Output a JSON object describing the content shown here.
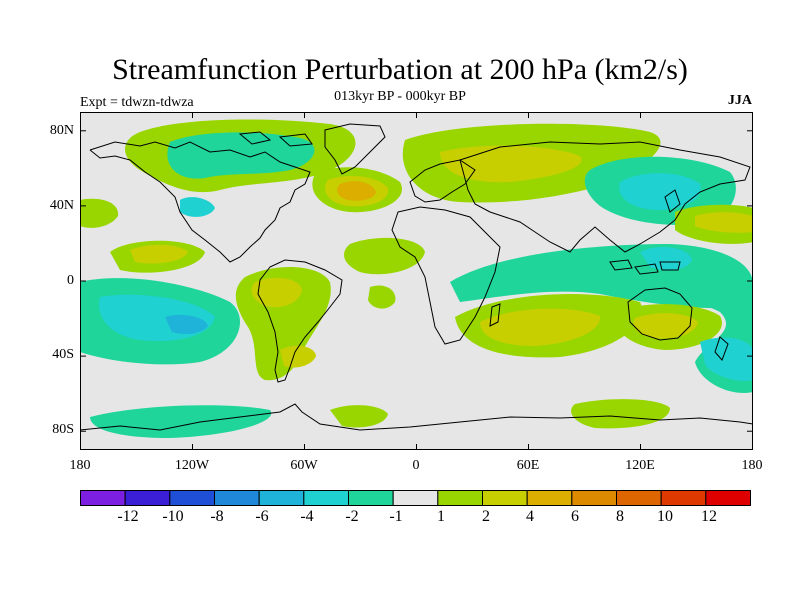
{
  "title": "Streamfunction Perturbation at 200 hPa (km2/s)",
  "subtitle": "013kyr BP - 000kyr BP",
  "experiment": "Expt = tdwzn-tdwza",
  "season": "JJA",
  "map": {
    "projection": "cylindrical equidistant",
    "lon_range": [
      -180,
      180
    ],
    "lat_range": [
      -90,
      90
    ],
    "x_ticks": [
      "180",
      "120W",
      "60W",
      "0",
      "60E",
      "120E",
      "180"
    ],
    "y_ticks": [
      "80N",
      "40N",
      "0",
      "40S",
      "80S"
    ],
    "background_color": "#e6e6e6",
    "coastline_color": "#000000"
  },
  "colorbar": {
    "colors": [
      "#7d1fe0",
      "#3a1fd6",
      "#1f4fd6",
      "#1f88d9",
      "#1fb3d9",
      "#1fd1d1",
      "#1fd59a",
      "#e6e6e6",
      "#99d600",
      "#c7cf00",
      "#dcae00",
      "#de8a00",
      "#de6600",
      "#de3a00",
      "#de0000"
    ],
    "labels": [
      "-12",
      "-10",
      "-8",
      "-6",
      "-4",
      "-2",
      "-1",
      "1",
      "2",
      "4",
      "6",
      "8",
      "10",
      "12"
    ]
  }
}
